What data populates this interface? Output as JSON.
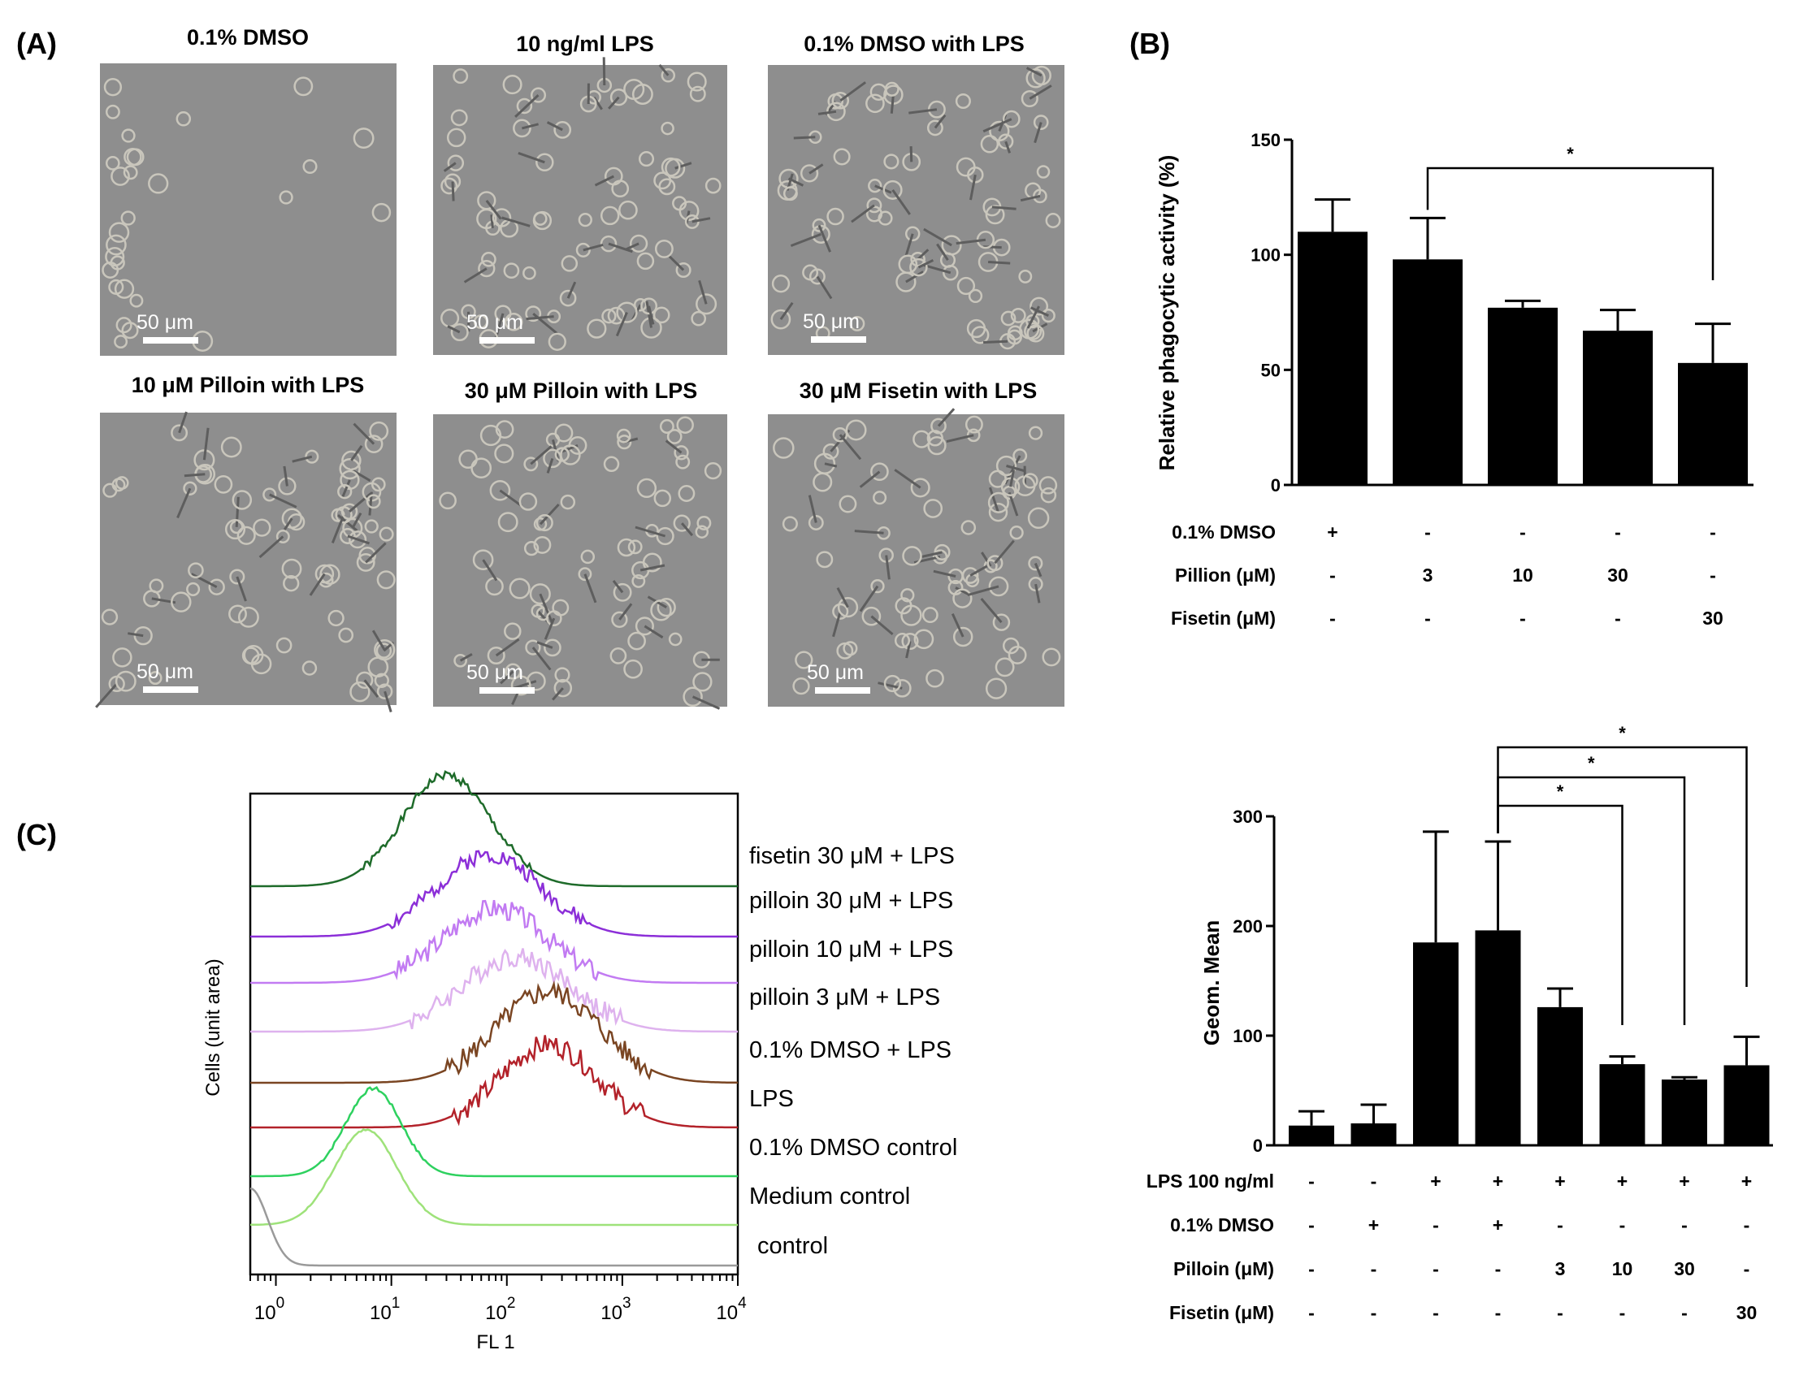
{
  "panel_labels": {
    "a": "(A)",
    "b": "(B)",
    "c": "(C)"
  },
  "micrographs": [
    {
      "title": "0.1% DMSO",
      "scale": "50 μm"
    },
    {
      "title": "10 ng/ml LPS",
      "scale": "50 μm"
    },
    {
      "title": "0.1% DMSO with LPS",
      "scale": "50 μm"
    },
    {
      "title": "10 μM Pilloin with LPS",
      "scale": "50 μm"
    },
    {
      "title": "30 μM Pilloin with LPS",
      "scale": "50 μm"
    },
    {
      "title": "30 μM Fisetin with LPS",
      "scale": "50 μm"
    }
  ],
  "colors": {
    "bar": "#000000",
    "micro_bg": "#8e8e8e",
    "cell": "#c9c6bc"
  },
  "chart_data": [
    {
      "type": "bar",
      "id": "B",
      "ylabel": "Relative phagocytic activity (%)",
      "ylim": [
        0,
        150
      ],
      "yticks": [
        "0",
        "50",
        "100",
        "150"
      ],
      "values": [
        110,
        98,
        77,
        67,
        53
      ],
      "errors": [
        14,
        18,
        3,
        9,
        17
      ],
      "conditions": [
        {
          "label": "0.1% DMSO",
          "values": [
            "+",
            "-",
            "-",
            "-",
            "-"
          ]
        },
        {
          "label": "Pillion (μM)",
          "values": [
            "-",
            "3",
            "10",
            "30",
            "-"
          ]
        },
        {
          "label": "Fisetin (μM)",
          "values": [
            "-",
            "-",
            "-",
            "-",
            "30"
          ]
        }
      ],
      "significance": [
        {
          "from": 1,
          "to": 4,
          "label": "*"
        }
      ]
    },
    {
      "type": "bar",
      "id": "D",
      "ylabel": "Geom. Mean",
      "ylim": [
        0,
        300
      ],
      "yticks": [
        "0",
        "100",
        "200",
        "300"
      ],
      "values": [
        18,
        20,
        185,
        196,
        126,
        74,
        60,
        73
      ],
      "errors": [
        13,
        17,
        101,
        81,
        17,
        7,
        2,
        26
      ],
      "conditions": [
        {
          "label": "LPS 100 ng/ml",
          "values": [
            "-",
            "-",
            "+",
            "+",
            "+",
            "+",
            "+",
            "+"
          ]
        },
        {
          "label": "0.1% DMSO",
          "values": [
            "-",
            "+",
            "-",
            "+",
            "-",
            "-",
            "-",
            "-"
          ]
        },
        {
          "label": "Pilloin (μM)",
          "values": [
            "-",
            "-",
            "-",
            "-",
            "3",
            "10",
            "30",
            "-"
          ]
        },
        {
          "label": "Fisetin (μM)",
          "values": [
            "-",
            "-",
            "-",
            "-",
            "-",
            "-",
            "-",
            "30"
          ]
        }
      ],
      "significance": [
        {
          "from": 3,
          "to": 5,
          "label": "*"
        },
        {
          "from": 3,
          "to": 6,
          "label": "*"
        },
        {
          "from": 3,
          "to": 7,
          "label": "*"
        }
      ]
    },
    {
      "type": "line",
      "id": "C",
      "xlabel": "FL 1",
      "ylabel": "Cells (unit area)",
      "xscale": "log",
      "xlim": [
        0.6,
        10000
      ],
      "xtick_base": "10",
      "xtick_exponents": [
        "0",
        "1",
        "2",
        "3",
        "4"
      ],
      "series": [
        {
          "name": "fisetin 30 μM + LPS",
          "color": "#1e6b2a",
          "peak": 30,
          "width": 0.38,
          "noise": 0.04,
          "seed": 1
        },
        {
          "name": "pilloin 30 μM + LPS",
          "color": "#8c2fd8",
          "peak": 70,
          "width": 0.45,
          "noise": 0.1,
          "seed": 2
        },
        {
          "name": "pilloin 10 μM + LPS",
          "color": "#c27bf2",
          "peak": 80,
          "width": 0.45,
          "noise": 0.14,
          "seed": 3
        },
        {
          "name": "pilloin 3 μM + LPS",
          "color": "#deb2ee",
          "peak": 120,
          "width": 0.47,
          "noise": 0.14,
          "seed": 4
        },
        {
          "name": "0.1% DMSO  + LPS",
          "color": "#7a4522",
          "peak": 230,
          "width": 0.45,
          "noise": 0.12,
          "seed": 5
        },
        {
          "name": "LPS",
          "color": "#b3222a",
          "peak": 230,
          "width": 0.42,
          "noise": 0.13,
          "seed": 6
        },
        {
          "name": "0.1% DMSO control",
          "color": "#2ed15f",
          "peak": 7,
          "width": 0.24,
          "noise": 0.02,
          "seed": 7
        },
        {
          "name": "Medium control",
          "color": "#9ee27a",
          "peak": 6,
          "width": 0.27,
          "noise": 0.01,
          "seed": 8
        },
        {
          "name": "control",
          "color": "#9a9a9a",
          "peak": 0.6,
          "width": 0.15,
          "noise": 0.0,
          "seed": 9
        }
      ]
    }
  ]
}
